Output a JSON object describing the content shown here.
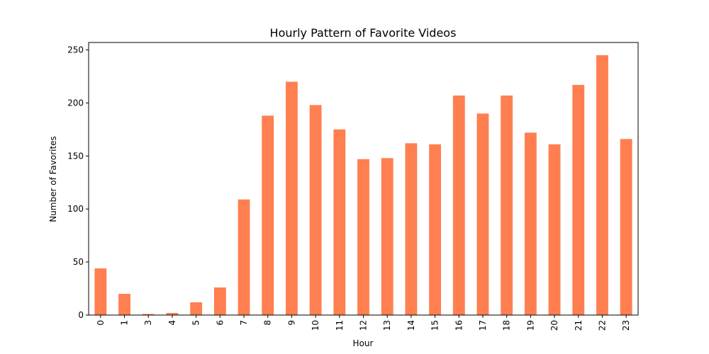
{
  "chart_data": {
    "type": "bar",
    "title": "Hourly Pattern of Favorite Videos",
    "xlabel": "Hour",
    "ylabel": "Number of Favorites",
    "categories": [
      "0",
      "1",
      "3",
      "4",
      "5",
      "6",
      "7",
      "8",
      "9",
      "10",
      "11",
      "12",
      "13",
      "14",
      "15",
      "16",
      "17",
      "18",
      "19",
      "20",
      "21",
      "22",
      "23"
    ],
    "values": [
      44,
      20,
      1,
      2,
      12,
      26,
      109,
      188,
      220,
      198,
      175,
      147,
      148,
      162,
      161,
      207,
      190,
      207,
      172,
      161,
      217,
      245,
      166
    ],
    "ylim": [
      0,
      257
    ],
    "yticks": [
      0,
      50,
      100,
      150,
      200,
      250
    ],
    "bar_color": "#ff7f50",
    "grid": false,
    "legend": "none"
  }
}
